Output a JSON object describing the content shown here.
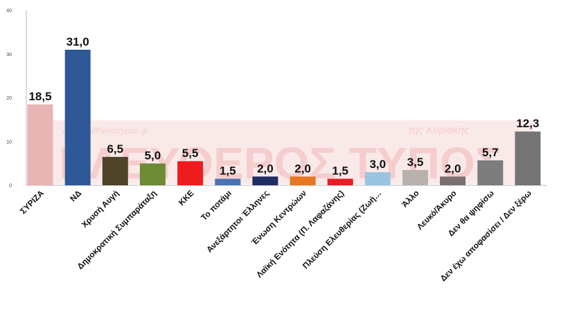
{
  "chart_data": {
    "type": "bar",
    "title": "",
    "xlabel": "",
    "ylabel": "",
    "ylim": [
      0,
      40
    ],
    "yticks": [
      0,
      10,
      20,
      30,
      40
    ],
    "grid": false,
    "legend": "none",
    "categories": [
      "ΣΥΡΙΖΑ",
      "ΝΔ",
      "Χρυσή Αυγή",
      "Δημοκρατική Συμπαράταξη",
      "ΚΚΕ",
      "Το ποτάμι",
      "Ανεξάρτητοι Έλληνες",
      "Ένωση Κεντρώων",
      "Λαϊκή Ενότητα (Π. Λαφαζάνης)",
      "Πλεύση Ελευθερίας (Ζωή…",
      "Άλλο",
      "Λευκό/Άκυρο",
      "Δεν θα ψηφίσω",
      "Δεν έχω αποφασίσει / Δεν ξέρω"
    ],
    "values": [
      18.5,
      31.0,
      6.5,
      5.0,
      5.5,
      1.5,
      2.0,
      2.0,
      1.5,
      3.0,
      3.5,
      2.0,
      5.7,
      12.3
    ],
    "value_labels": [
      "18,5",
      "31,0",
      "6,5",
      "5,0",
      "5,5",
      "1,5",
      "2,0",
      "2,0",
      "1,5",
      "3,0",
      "3,5",
      "2,0",
      "5,7",
      "12,3"
    ],
    "colors": [
      "#e8b4b4",
      "#2f5896",
      "#4f4328",
      "#6d8a35",
      "#ee1c1c",
      "#4b73b3",
      "#1f2d66",
      "#e87722",
      "#e81c24",
      "#9bc4e0",
      "#b8b0ad",
      "#7b7070",
      "#7d7d7d",
      "#747474"
    ]
  },
  "watermark": {
    "url": "www.eleftherostypos.gr",
    "tag": "της Κυριακής",
    "title": "ΕΛΕΥΘΕΡΟΣ ΤΥΠΟΣ"
  }
}
